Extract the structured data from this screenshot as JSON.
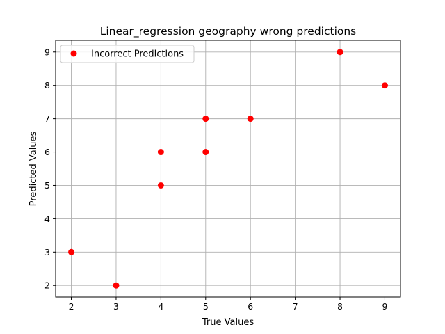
{
  "chart_data": {
    "type": "scatter",
    "title": "Linear_regression geography wrong predictions",
    "xlabel": "True Values",
    "ylabel": "Predicted Values",
    "xlim": [
      1.65,
      9.35
    ],
    "ylim": [
      1.65,
      9.35
    ],
    "xticks": [
      2,
      3,
      4,
      5,
      6,
      7,
      8,
      9
    ],
    "yticks": [
      2,
      3,
      4,
      5,
      6,
      7,
      8,
      9
    ],
    "grid": true,
    "legend_position": "top-left",
    "series": [
      {
        "name": "Incorrect Predictions",
        "color": "#ff0000",
        "points": [
          {
            "x": 2,
            "y": 3
          },
          {
            "x": 3,
            "y": 2
          },
          {
            "x": 4,
            "y": 6
          },
          {
            "x": 4,
            "y": 5
          },
          {
            "x": 5,
            "y": 7
          },
          {
            "x": 5,
            "y": 6
          },
          {
            "x": 6,
            "y": 7
          },
          {
            "x": 8,
            "y": 9
          },
          {
            "x": 9,
            "y": 8
          }
        ]
      }
    ]
  }
}
